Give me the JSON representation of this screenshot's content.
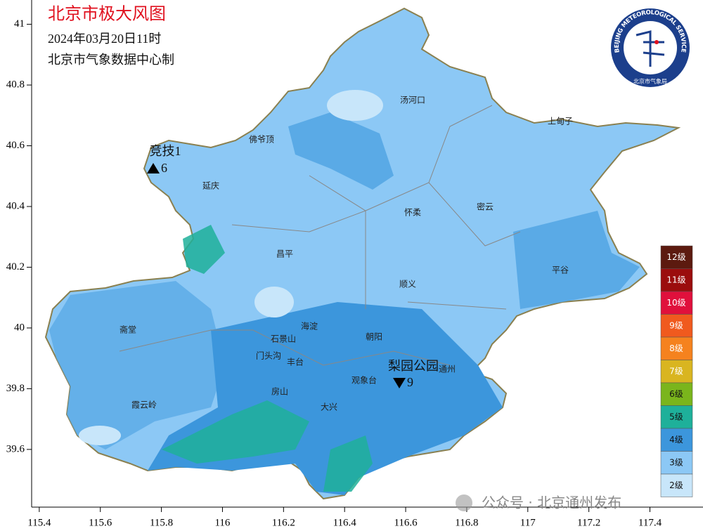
{
  "header": {
    "title": "北京市极大风图",
    "datetime": "2024年03月20日11时",
    "source": "北京市气象数据中心制"
  },
  "map": {
    "xlim": [
      115.375,
      117.56
    ],
    "ylim": [
      39.41,
      41.08
    ],
    "lon_ticks": [
      115.4,
      115.6,
      115.8,
      116,
      116.2,
      116.4,
      116.6,
      116.8,
      117,
      117.2,
      117.4
    ],
    "lat_ticks": [
      39.6,
      39.8,
      40,
      40.2,
      40.4,
      40.6,
      40.8,
      41
    ]
  },
  "places": [
    "汤河口",
    "上甸子",
    "佛爷顶",
    "延庆",
    "怀柔",
    "密云",
    "昌平",
    "平谷",
    "顺义",
    "海淀",
    "朝阳",
    "石景山",
    "门头沟",
    "丰台",
    "通州",
    "观象台",
    "霞云岭",
    "大兴",
    "房山",
    "斋堂"
  ],
  "stations": [
    {
      "name": "竞技1",
      "value": 6
    },
    {
      "name": "梨园公园",
      "value": 9
    }
  ],
  "legend": {
    "levels": [
      {
        "label": "12级",
        "color": "#5c1a0f"
      },
      {
        "label": "11级",
        "color": "#9b0d0d"
      },
      {
        "label": "10级",
        "color": "#e0103c"
      },
      {
        "label": "9级",
        "color": "#f05a1e"
      },
      {
        "label": "8级",
        "color": "#f5821e"
      },
      {
        "label": "7级",
        "color": "#d9b520"
      },
      {
        "label": "6级",
        "color": "#7ab51c"
      },
      {
        "label": "5级",
        "color": "#1eb09a"
      },
      {
        "label": "4级",
        "color": "#3c96dc"
      },
      {
        "label": "3级",
        "color": "#8cc8f5"
      },
      {
        "label": "2级",
        "color": "#c8e6fa"
      }
    ]
  },
  "logo": {
    "text": "BEIJING METEOROLOGICAL SERVICE",
    "sub": "北京市气象局"
  },
  "watermark": "公众号 · 北京通州发布"
}
